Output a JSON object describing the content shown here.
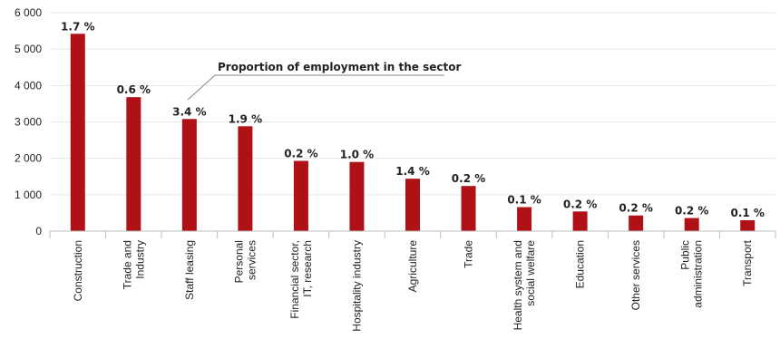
{
  "chart_data": {
    "type": "bar",
    "categories": [
      [
        "Construction"
      ],
      [
        "Trade and",
        "Industry"
      ],
      [
        "Staff leasing"
      ],
      [
        "Personal",
        "services"
      ],
      [
        "Financial sector,",
        "IT, research"
      ],
      [
        "Hospitality industry"
      ],
      [
        "Agriculture"
      ],
      [
        "Trade"
      ],
      [
        "Health system and",
        "social welfare"
      ],
      [
        "Education"
      ],
      [
        "Other services"
      ],
      [
        "Public",
        "administration"
      ],
      [
        "Transport"
      ]
    ],
    "values": [
      5420,
      3680,
      3080,
      2880,
      1930,
      1900,
      1440,
      1240,
      660,
      540,
      430,
      360,
      300
    ],
    "data_labels": [
      "1.7 %",
      "0.6 %",
      "3.4 %",
      "1.9 %",
      "0.2 %",
      "1.0 %",
      "1.4 %",
      "0.2 %",
      "0.1 %",
      "0.2 %",
      "0.2 %",
      "0.2 %",
      "0.1 %"
    ],
    "y_ticks": [
      "0",
      "1 000",
      "2 000",
      "3 000",
      "4 000",
      "5 000",
      "6 000"
    ],
    "ylim": [
      0,
      6000
    ],
    "annotation": "Proportion of employment in the sector",
    "grid": true,
    "bar_color": "#b01116"
  }
}
